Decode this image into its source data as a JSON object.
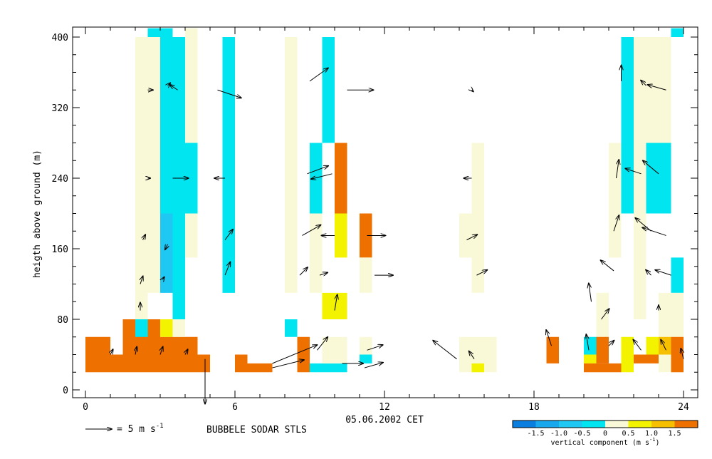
{
  "chart_data": {
    "type": "heatmap",
    "title": "",
    "xlabel": "05.06.2002 CET",
    "ylabel": "heigth above ground (m)",
    "xlim": [
      -0.5,
      24.5
    ],
    "ylim": [
      -10,
      410
    ],
    "x_ticks": [
      0,
      6,
      12,
      18,
      24
    ],
    "y_ticks": [
      0,
      80,
      160,
      240,
      320,
      400
    ],
    "grid": false,
    "footer": {
      "scale_label": "= 5 m s",
      "scale_exponent": "-1",
      "station_label": "BUBBELE SODAR STLS"
    },
    "colorbar": {
      "label": "vertical component (m s",
      "label_exponent": "-1",
      "label_close": ")",
      "ticks": [
        "-1.5",
        "-1.0",
        "-0.5",
        "0",
        "0.5",
        "1.0",
        "1.5"
      ],
      "levels": [
        {
          "from": -2.0,
          "to": -1.5,
          "color": "#0a7fe0"
        },
        {
          "from": -1.5,
          "to": -1.0,
          "color": "#19a8ee"
        },
        {
          "from": -1.0,
          "to": -0.5,
          "color": "#1fc8f3"
        },
        {
          "from": -0.5,
          "to": 0.0,
          "color": "#00e5ef"
        },
        {
          "from": 0.0,
          "to": 0.5,
          "color": "#f9f9d8"
        },
        {
          "from": 0.5,
          "to": 1.0,
          "color": "#f3f300"
        },
        {
          "from": 1.0,
          "to": 1.5,
          "color": "#f6bf00"
        },
        {
          "from": 1.5,
          "to": 2.0,
          "color": "#ee7100"
        }
      ]
    },
    "cells": [
      {
        "t0": 2.0,
        "t1": 3.0,
        "h0": 160,
        "h1": 400,
        "w": 0.2
      },
      {
        "t0": 3.0,
        "t1": 4.0,
        "h0": 200,
        "h1": 400,
        "w": -0.4
      },
      {
        "t0": 3.0,
        "t1": 3.5,
        "h0": 110,
        "h1": 200,
        "w": -0.8
      },
      {
        "t0": 3.5,
        "t1": 4.0,
        "h0": 80,
        "h1": 200,
        "w": -0.4
      },
      {
        "t0": 4.0,
        "t1": 4.5,
        "h0": 200,
        "h1": 280,
        "w": -0.4
      },
      {
        "t0": 4.0,
        "t1": 4.5,
        "h0": 150,
        "h1": 200,
        "w": 0.2
      },
      {
        "t0": 4.0,
        "t1": 4.5,
        "h0": 280,
        "h1": 400,
        "w": 0.2
      },
      {
        "t0": 2.5,
        "t1": 3.5,
        "h0": 400,
        "h1": 410,
        "w": -0.4
      },
      {
        "t0": 4.0,
        "t1": 4.5,
        "h0": 400,
        "h1": 410,
        "w": 0.2
      },
      {
        "t0": 2.0,
        "t1": 3.0,
        "h0": 110,
        "h1": 160,
        "w": 0.2
      },
      {
        "t0": 2.0,
        "t1": 2.5,
        "h0": 80,
        "h1": 110,
        "w": 0.2
      },
      {
        "t0": 5.5,
        "t1": 6.0,
        "h0": 110,
        "h1": 400,
        "w": -0.4
      },
      {
        "t0": 8.0,
        "t1": 8.5,
        "h0": 110,
        "h1": 400,
        "w": 0.2
      },
      {
        "t0": 9.5,
        "t1": 10.0,
        "h0": 280,
        "h1": 400,
        "w": -0.4
      },
      {
        "t0": 9.0,
        "t1": 9.5,
        "h0": 200,
        "h1": 280,
        "w": -0.4
      },
      {
        "t0": 9.0,
        "t1": 9.5,
        "h0": 110,
        "h1": 200,
        "w": 0.2
      },
      {
        "t0": 10.0,
        "t1": 10.5,
        "h0": 200,
        "h1": 280,
        "w": 1.7
      },
      {
        "t0": 10.0,
        "t1": 10.5,
        "h0": 150,
        "h1": 200,
        "w": 0.7
      },
      {
        "t0": 9.5,
        "t1": 10.5,
        "h0": 80,
        "h1": 110,
        "w": 0.7
      },
      {
        "t0": 11.0,
        "t1": 11.5,
        "h0": 150,
        "h1": 200,
        "w": 1.7
      },
      {
        "t0": 11.0,
        "t1": 11.5,
        "h0": 110,
        "h1": 150,
        "w": 0.2
      },
      {
        "t0": 8.0,
        "t1": 8.5,
        "h0": 60,
        "h1": 80,
        "w": -0.4
      },
      {
        "t0": 15.0,
        "t1": 15.5,
        "h0": 150,
        "h1": 200,
        "w": 0.2
      },
      {
        "t0": 15.5,
        "t1": 16.0,
        "h0": 110,
        "h1": 280,
        "w": 0.2
      },
      {
        "t0": 21.5,
        "t1": 22.0,
        "h0": 200,
        "h1": 400,
        "w": -0.4
      },
      {
        "t0": 21.0,
        "t1": 21.5,
        "h0": 150,
        "h1": 280,
        "w": 0.2
      },
      {
        "t0": 22.5,
        "t1": 23.5,
        "h0": 200,
        "h1": 280,
        "w": -0.4
      },
      {
        "t0": 22.5,
        "t1": 23.5,
        "h0": 280,
        "h1": 400,
        "w": 0.2
      },
      {
        "t0": 22.0,
        "t1": 22.5,
        "h0": 80,
        "h1": 400,
        "w": 0.2
      },
      {
        "t0": 23.5,
        "t1": 24.0,
        "h0": 400,
        "h1": 410,
        "w": -0.4
      },
      {
        "t0": 23.5,
        "t1": 24.0,
        "h0": 110,
        "h1": 150,
        "w": -0.4
      },
      {
        "t0": 20.5,
        "t1": 21.0,
        "h0": 60,
        "h1": 110,
        "w": 0.2
      },
      {
        "t0": 23.0,
        "t1": 24.0,
        "h0": 60,
        "h1": 110,
        "w": 0.2
      },
      {
        "t0": 0.0,
        "t1": 1.0,
        "h0": 20,
        "h1": 60,
        "w": 1.7
      },
      {
        "t0": 1.0,
        "t1": 1.5,
        "h0": 20,
        "h1": 40,
        "w": 1.7
      },
      {
        "t0": 1.5,
        "t1": 3.0,
        "h0": 20,
        "h1": 80,
        "w": 1.7
      },
      {
        "t0": 3.0,
        "t1": 4.5,
        "h0": 20,
        "h1": 60,
        "w": 1.7
      },
      {
        "t0": 2.0,
        "t1": 2.5,
        "h0": 60,
        "h1": 80,
        "w": -0.4
      },
      {
        "t0": 3.0,
        "t1": 3.5,
        "h0": 60,
        "h1": 80,
        "w": 0.7
      },
      {
        "t0": 3.5,
        "t1": 4.0,
        "h0": 60,
        "h1": 80,
        "w": 0.2
      },
      {
        "t0": 4.5,
        "t1": 5.0,
        "h0": 20,
        "h1": 40,
        "w": 1.7
      },
      {
        "t0": 6.0,
        "t1": 6.5,
        "h0": 20,
        "h1": 40,
        "w": 1.7
      },
      {
        "t0": 6.5,
        "t1": 7.5,
        "h0": 20,
        "h1": 30,
        "w": 1.7
      },
      {
        "t0": 8.5,
        "t1": 9.0,
        "h0": 20,
        "h1": 60,
        "w": 1.7
      },
      {
        "t0": 9.0,
        "t1": 10.5,
        "h0": 20,
        "h1": 30,
        "w": -0.4
      },
      {
        "t0": 9.5,
        "t1": 10.5,
        "h0": 30,
        "h1": 60,
        "w": 0.2
      },
      {
        "t0": 11.0,
        "t1": 11.5,
        "h0": 30,
        "h1": 40,
        "w": -0.4
      },
      {
        "t0": 11.0,
        "t1": 11.5,
        "h0": 40,
        "h1": 60,
        "w": 0.2
      },
      {
        "t0": 15.0,
        "t1": 16.5,
        "h0": 20,
        "h1": 60,
        "w": 0.2
      },
      {
        "t0": 15.5,
        "t1": 16.0,
        "h0": 20,
        "h1": 30,
        "w": 0.7
      },
      {
        "t0": 18.5,
        "t1": 19.0,
        "h0": 30,
        "h1": 60,
        "w": 1.7
      },
      {
        "t0": 20.0,
        "t1": 20.5,
        "h0": 40,
        "h1": 60,
        "w": -0.4
      },
      {
        "t0": 20.0,
        "t1": 20.5,
        "h0": 30,
        "h1": 40,
        "w": 0.7
      },
      {
        "t0": 20.0,
        "t1": 21.0,
        "h0": 20,
        "h1": 30,
        "w": 1.7
      },
      {
        "t0": 20.5,
        "t1": 21.0,
        "h0": 30,
        "h1": 60,
        "w": 1.7
      },
      {
        "t0": 21.0,
        "t1": 21.5,
        "h0": 20,
        "h1": 30,
        "w": 1.7
      },
      {
        "t0": 21.5,
        "t1": 22.0,
        "h0": 20,
        "h1": 60,
        "w": 0.7
      },
      {
        "t0": 22.0,
        "t1": 23.0,
        "h0": 30,
        "h1": 40,
        "w": 1.7
      },
      {
        "t0": 22.5,
        "t1": 23.0,
        "h0": 40,
        "h1": 60,
        "w": 0.7
      },
      {
        "t0": 23.0,
        "t1": 23.5,
        "h0": 40,
        "h1": 60,
        "w": 1.2
      },
      {
        "t0": 23.0,
        "t1": 23.5,
        "h0": 20,
        "h1": 40,
        "w": 0.2
      },
      {
        "t0": 23.5,
        "t1": 24.0,
        "h0": 20,
        "h1": 60,
        "w": 1.7
      }
    ],
    "wind_vectors": [
      {
        "t": 2.5,
        "h": 340,
        "u": 1.0,
        "v": 0.0
      },
      {
        "t": 3.3,
        "h": 345,
        "u": 0.5,
        "v": 0.5
      },
      {
        "t": 3.7,
        "h": 340,
        "u": -1.5,
        "v": 1.0
      },
      {
        "t": 5.3,
        "h": 340,
        "u": 4.5,
        "v": -1.5
      },
      {
        "t": 9.0,
        "h": 350,
        "u": 3.5,
        "v": 2.5
      },
      {
        "t": 10.5,
        "h": 340,
        "u": 5.0,
        "v": 0.0
      },
      {
        "t": 15.5,
        "h": 340,
        "u": 0.3,
        "v": -0.3
      },
      {
        "t": 21.5,
        "h": 350,
        "u": 0.0,
        "v": 3.0
      },
      {
        "t": 22.5,
        "h": 345,
        "u": -1.0,
        "v": 1.0
      },
      {
        "t": 23.3,
        "h": 340,
        "u": -3.5,
        "v": 1.0
      },
      {
        "t": 2.5,
        "h": 240,
        "u": 0.5,
        "v": 0.0
      },
      {
        "t": 3.5,
        "h": 240,
        "u": 3.0,
        "v": 0.0
      },
      {
        "t": 5.6,
        "h": 240,
        "u": -2.0,
        "v": 0.0
      },
      {
        "t": 8.9,
        "h": 245,
        "u": 4.0,
        "v": 1.5
      },
      {
        "t": 9.9,
        "h": 245,
        "u": -4.0,
        "v": -1.0
      },
      {
        "t": 15.5,
        "h": 240,
        "u": -1.5,
        "v": 0.0
      },
      {
        "t": 21.3,
        "h": 240,
        "u": 0.5,
        "v": 3.5
      },
      {
        "t": 22.3,
        "h": 245,
        "u": -3.0,
        "v": 1.0
      },
      {
        "t": 23.0,
        "h": 245,
        "u": -3.0,
        "v": 2.5
      },
      {
        "t": 2.3,
        "h": 170,
        "u": 0.5,
        "v": 1.0
      },
      {
        "t": 3.3,
        "h": 165,
        "u": -0.5,
        "v": -1.0
      },
      {
        "t": 5.6,
        "h": 170,
        "u": 1.5,
        "v": 2.0
      },
      {
        "t": 8.7,
        "h": 175,
        "u": 3.5,
        "v": 2.0
      },
      {
        "t": 10.0,
        "h": 175,
        "u": -2.5,
        "v": 0.0
      },
      {
        "t": 11.3,
        "h": 175,
        "u": 3.5,
        "v": 0.0
      },
      {
        "t": 15.3,
        "h": 170,
        "u": 2.0,
        "v": 1.0
      },
      {
        "t": 21.2,
        "h": 180,
        "u": 1.0,
        "v": 3.0
      },
      {
        "t": 22.7,
        "h": 180,
        "u": -3.0,
        "v": 2.5
      },
      {
        "t": 23.3,
        "h": 175,
        "u": -4.5,
        "v": 1.5
      },
      {
        "t": 2.2,
        "h": 120,
        "u": 0.5,
        "v": 1.5
      },
      {
        "t": 3.1,
        "h": 125,
        "u": 0.3,
        "v": 0.5
      },
      {
        "t": 5.6,
        "h": 130,
        "u": 1.0,
        "v": 2.5
      },
      {
        "t": 8.6,
        "h": 130,
        "u": 1.5,
        "v": 1.5
      },
      {
        "t": 9.4,
        "h": 130,
        "u": 1.5,
        "v": 0.5
      },
      {
        "t": 11.6,
        "h": 130,
        "u": 3.5,
        "v": 0.0
      },
      {
        "t": 15.7,
        "h": 130,
        "u": 2.0,
        "v": 1.0
      },
      {
        "t": 21.2,
        "h": 135,
        "u": -2.5,
        "v": 2.0
      },
      {
        "t": 22.7,
        "h": 130,
        "u": -1.0,
        "v": 1.0
      },
      {
        "t": 23.5,
        "h": 130,
        "u": -3.0,
        "v": 1.0
      },
      {
        "t": 2.2,
        "h": 90,
        "u": 0.0,
        "v": 1.5
      },
      {
        "t": 10.0,
        "h": 90,
        "u": 0.5,
        "v": 3.0
      },
      {
        "t": 20.3,
        "h": 100,
        "u": -0.5,
        "v": 3.5
      },
      {
        "t": 20.7,
        "h": 80,
        "u": 1.5,
        "v": 2.0
      },
      {
        "t": 23.0,
        "h": 90,
        "u": 0.0,
        "v": 1.0
      },
      {
        "t": 1.0,
        "h": 40,
        "u": 0.5,
        "v": 1.0
      },
      {
        "t": 2.0,
        "h": 40,
        "u": 0.3,
        "v": 1.5
      },
      {
        "t": 3.0,
        "h": 40,
        "u": 0.5,
        "v": 1.5
      },
      {
        "t": 4.0,
        "h": 40,
        "u": 0.5,
        "v": 1.0
      },
      {
        "t": 4.8,
        "h": 35,
        "u": 0.0,
        "v": -8.5
      },
      {
        "t": 7.5,
        "h": 30,
        "u": 8.5,
        "v": 3.5
      },
      {
        "t": 7.5,
        "h": 25,
        "u": 6.0,
        "v": 1.5
      },
      {
        "t": 9.3,
        "h": 45,
        "u": 2.0,
        "v": 2.5
      },
      {
        "t": 10.3,
        "h": 30,
        "u": 4.0,
        "v": 0.0
      },
      {
        "t": 11.2,
        "h": 25,
        "u": 3.5,
        "v": 1.0
      },
      {
        "t": 11.3,
        "h": 45,
        "u": 3.0,
        "v": 1.0
      },
      {
        "t": 14.9,
        "h": 35,
        "u": -4.5,
        "v": 3.5
      },
      {
        "t": 15.6,
        "h": 35,
        "u": -1.0,
        "v": 1.5
      },
      {
        "t": 18.7,
        "h": 50,
        "u": -1.0,
        "v": 3.0
      },
      {
        "t": 20.2,
        "h": 45,
        "u": -0.5,
        "v": 3.0
      },
      {
        "t": 21.0,
        "h": 50,
        "u": 1.0,
        "v": 1.0
      },
      {
        "t": 22.3,
        "h": 45,
        "u": -1.5,
        "v": 2.0
      },
      {
        "t": 23.3,
        "h": 45,
        "u": -1.0,
        "v": 2.0
      },
      {
        "t": 24.0,
        "h": 35,
        "u": -0.5,
        "v": 2.0
      }
    ]
  }
}
